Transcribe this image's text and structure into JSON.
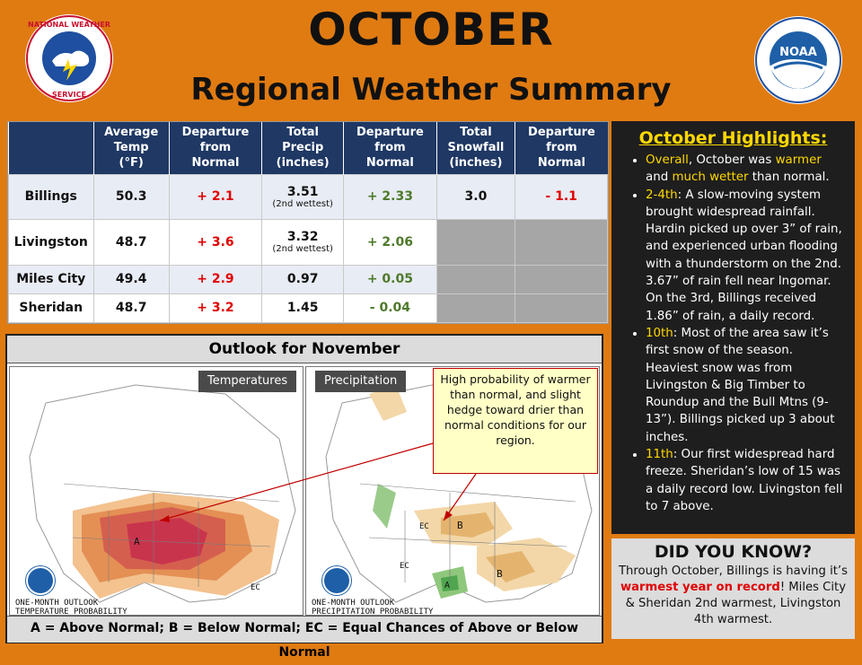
{
  "title": "OCTOBER",
  "subtitle": "Regional Weather Summary",
  "logos": {
    "left": "nws-seal",
    "left_text": "NATIONAL WEATHER SERVICE",
    "right": "noaa-seal",
    "right_text": "NOAA"
  },
  "table": {
    "headers": [
      {
        "l1": "Average",
        "l2": "Temp",
        "l3": "(°F)"
      },
      {
        "l1": "Departure",
        "l2": "from",
        "l3": "Normal"
      },
      {
        "l1": "Total",
        "l2": "Precip",
        "l3": "(inches)"
      },
      {
        "l1": "Departure",
        "l2": "from",
        "l3": "Normal"
      },
      {
        "l1": "Total",
        "l2": "Snowfall",
        "l3": "(inches)"
      },
      {
        "l1": "Departure",
        "l2": "from",
        "l3": "Normal"
      }
    ],
    "rows": [
      {
        "city": "Billings",
        "temp": "50.3",
        "tdep": "+ 2.1",
        "precip": "3.51",
        "precip_note": "(2nd wettest)",
        "pdep": "+ 2.33",
        "snow": "3.0",
        "sdep": "- 1.1"
      },
      {
        "city": "Livingston",
        "temp": "48.7",
        "tdep": "+ 3.6",
        "precip": "3.32",
        "precip_note": "(2nd wettest)",
        "pdep": "+ 2.06",
        "snow": "",
        "sdep": ""
      },
      {
        "city": "Miles City",
        "temp": "49.4",
        "tdep": "+ 2.9",
        "precip": "0.97",
        "precip_note": "",
        "pdep": "+ 0.05",
        "snow": "",
        "sdep": ""
      },
      {
        "city": "Sheridan",
        "temp": "48.7",
        "tdep": "+ 3.2",
        "precip": "1.45",
        "precip_note": "",
        "pdep": "- 0.04",
        "snow": "",
        "sdep": ""
      }
    ]
  },
  "highlights": {
    "title": "October Highlights",
    "items": [
      {
        "lead": "Overall",
        "text": ", October was ",
        "em1": "warmer",
        "mid": " and ",
        "em2": "much wetter",
        "tail": " than normal."
      },
      {
        "lead": "2-4th",
        "text": ": A slow-moving system brought widespread rainfall. Hardin picked up over 3” of rain, and experienced urban flooding with a thunderstorm on the 2nd. 3.67” of rain fell near Ingomar. On the 3rd, Billings received 1.86” of rain, a daily record."
      },
      {
        "lead": "10th",
        "text": ": Most of the area saw it’s first snow of the season. Heaviest snow was from Livingston & Big Timber to Roundup and the Bull Mtns (9-13”). Billings picked up 3 about inches."
      },
      {
        "lead": "11th",
        "text": ": Our first widespread hard freeze. Sheridan’s low of 15 was a daily record low. Livingston fell to 7 above."
      }
    ]
  },
  "did_you_know": {
    "title": "DID YOU KNOW?",
    "pre": "Through October, Billings is having it’s ",
    "em": "warmest year on record",
    "post": "! Miles City & Sheridan 2nd warmest, Livingston 4th warmest."
  },
  "outlook": {
    "title": "Outlook for November",
    "temp_tag": "Temperatures",
    "precip_tag": "Precipitation",
    "callout": "High probability of warmer than normal, and slight hedge toward drier than normal conditions for our region.",
    "temp_caption": "ONE-MONTH OUTLOOK\nTEMPERATURE PROBABILITY",
    "precip_caption": "ONE-MONTH OUTLOOK\nPRECIPITATION PROBABILITY",
    "legend": "A = Above Normal;  B = Below Normal;  EC = Equal Chances of Above or Below Normal",
    "labels": {
      "A": "A",
      "B": "B",
      "EC": "EC"
    }
  },
  "colors": {
    "background": "#E07B12",
    "header_blue": "#1F3864",
    "highlight_yellow": "#FFD800",
    "warm_red": "#E00000",
    "cool_green": "#4E7A2B"
  }
}
